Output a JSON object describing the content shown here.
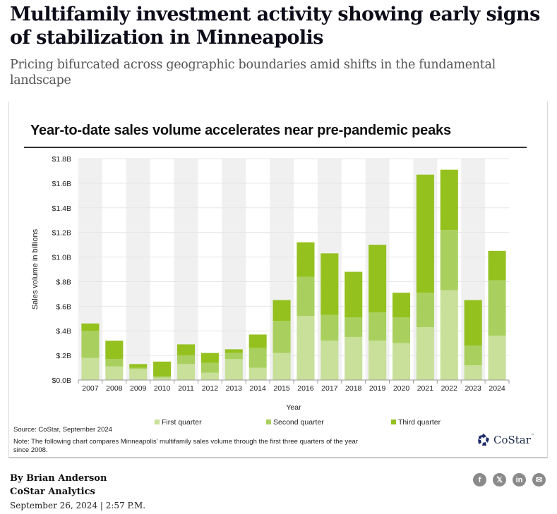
{
  "article": {
    "headline": "Multifamily investment activity showing early signs of stabilization in Minneapolis",
    "subheadline": "Pricing bifurcated across geographic boundaries amid shifts in the fundamental landscape",
    "byline": "By Brian Anderson",
    "organization": "CoStar Analytics",
    "dateline": "September 26, 2024 | 2:57 P.M.",
    "share_icons": [
      {
        "name": "facebook-icon",
        "glyph": "f"
      },
      {
        "name": "x-twitter-icon",
        "glyph": "𝕏"
      },
      {
        "name": "linkedin-icon",
        "glyph": "in"
      },
      {
        "name": "email-icon",
        "glyph": "✉"
      }
    ]
  },
  "figure": {
    "source": "Source: CoStar, September 2024",
    "note": "Note: The following chart compares Minneapolis' multifamily sales volume through the first three quarters of the year since 2008.",
    "logo_text": "CoStar",
    "logo_tm": "™"
  },
  "chart_data": {
    "type": "bar",
    "stacked": true,
    "title": "Year-to-date sales volume accelerates near pre-pandemic peaks",
    "xlabel": "Year",
    "ylabel": "Sales volume in billions",
    "ylim": [
      0,
      1.8
    ],
    "yticks": [
      0,
      0.2,
      0.4,
      0.6,
      0.8,
      1.0,
      1.2,
      1.4,
      1.6,
      1.8
    ],
    "ytick_labels": [
      "$0.0B",
      "$.2B",
      "$.4B",
      "$.6B",
      "$.8B",
      "$1.0B",
      "$1.2B",
      "$1.4B",
      "$1.6B",
      "$1.8B"
    ],
    "grid": true,
    "alternating_column_shading": true,
    "legend_position": "bottom",
    "categories": [
      "2007",
      "2008",
      "2009",
      "2010",
      "2011",
      "2012",
      "2013",
      "2014",
      "2015",
      "2016",
      "2017",
      "2018",
      "2019",
      "2020",
      "2021",
      "2022",
      "2023",
      "2024"
    ],
    "series": [
      {
        "name": "First quarter",
        "color": "#c8e09a",
        "values": [
          0.18,
          0.11,
          0.09,
          0.02,
          0.13,
          0.06,
          0.17,
          0.1,
          0.22,
          0.52,
          0.32,
          0.35,
          0.32,
          0.3,
          0.43,
          0.73,
          0.12,
          0.36
        ]
      },
      {
        "name": "Second quarter",
        "color": "#a9d05e",
        "values": [
          0.22,
          0.06,
          0.01,
          0.01,
          0.07,
          0.08,
          0.05,
          0.16,
          0.26,
          0.32,
          0.21,
          0.16,
          0.23,
          0.21,
          0.28,
          0.49,
          0.16,
          0.45
        ]
      },
      {
        "name": "Third quarter",
        "color": "#95c11f",
        "values": [
          0.06,
          0.15,
          0.03,
          0.12,
          0.09,
          0.08,
          0.03,
          0.11,
          0.17,
          0.28,
          0.5,
          0.37,
          0.55,
          0.2,
          0.96,
          0.49,
          0.37,
          0.24
        ]
      }
    ]
  }
}
